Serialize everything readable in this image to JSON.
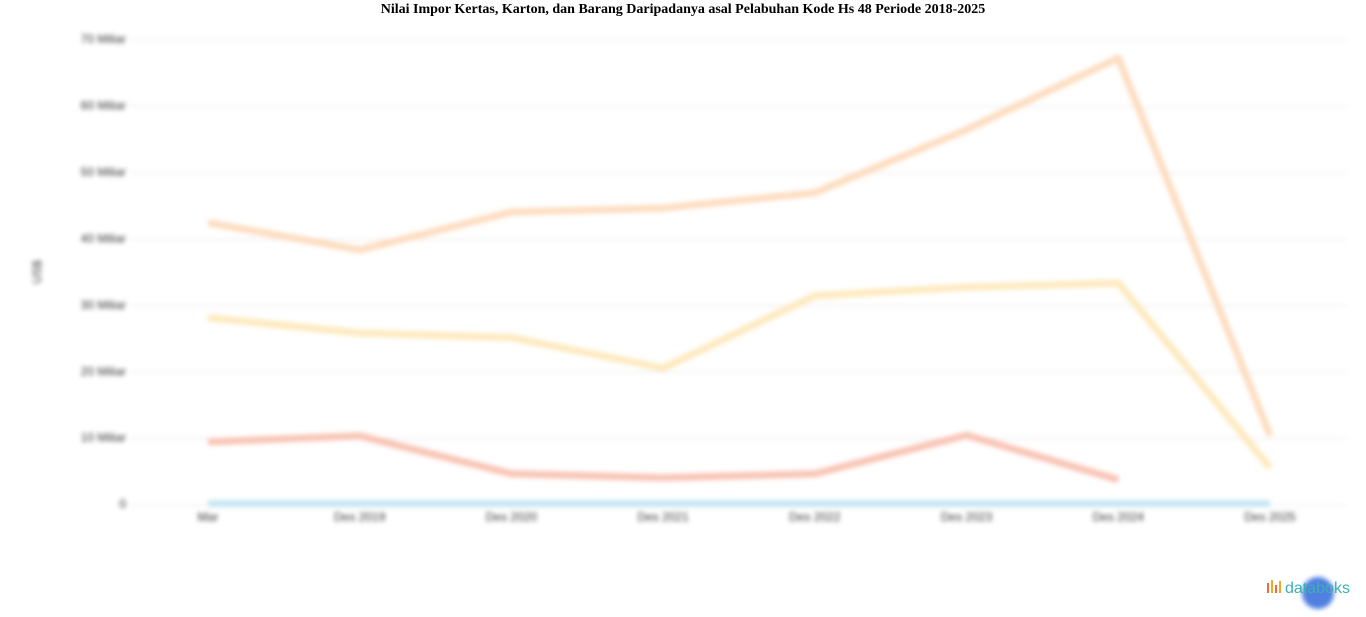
{
  "chart_data": {
    "type": "line",
    "title": "Nilai Impor Kertas, Karton, dan Barang Daripadanya asal Pelabuhan Kode Hs 48 Periode 2018-2025",
    "y_label": "US$",
    "categories": [
      "Mar",
      "Des 2019",
      "Des 2020",
      "Des 2021",
      "Des 2022",
      "Des 2023",
      "Des 2024",
      "Des 2025"
    ],
    "series": [
      {
        "color": "#fddcbf",
        "values": [
          42.5,
          38.4,
          44.1,
          44.7,
          47,
          56.5,
          67.3,
          10.5
        ]
      },
      {
        "color": "#fde9bd",
        "values": [
          28.2,
          25.9,
          25.2,
          20.6,
          31.5,
          32.8,
          33.4,
          5.6
        ]
      },
      {
        "color": "#f8c3b3",
        "values": [
          9.5,
          10.4,
          4.7,
          4.1,
          4.7,
          10.5,
          3.8,
          null
        ]
      },
      {
        "color": "#c6e6f4",
        "values": [
          0.2,
          0.2,
          0.2,
          0.2,
          0.2,
          0.2,
          0.2,
          0.2
        ]
      }
    ],
    "ylim": [
      0,
      70
    ],
    "yticks": [
      0,
      {
        "value": 10,
        "label": "10 Miliar"
      },
      {
        "value": 20,
        "label": "20 Miliar"
      },
      {
        "value": 30,
        "label": "30 Miliar"
      },
      {
        "value": 40,
        "label": "40 Miliar"
      },
      {
        "value": 50,
        "label": "50 Miliar"
      },
      {
        "value": 60,
        "label": "60 Miliar"
      },
      {
        "value": 70,
        "label": "70 Miliar"
      }
    ],
    "grid": true,
    "brand": "databoks"
  }
}
